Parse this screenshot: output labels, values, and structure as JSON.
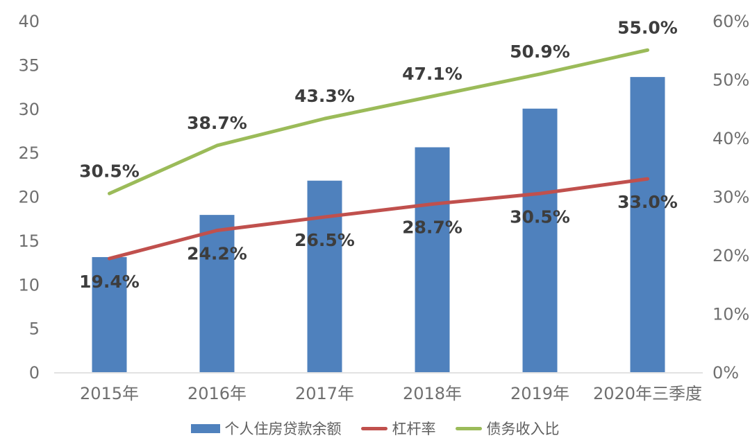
{
  "background": "#ffffff",
  "colors": {
    "bar": "#4f81bd",
    "leverage_line": "#c0504d",
    "dti_line": "#9bbb59",
    "axis_line": "#d9d9d9",
    "tick_label": "#6f6f6f",
    "data_label": "#3d3d3d",
    "legend_label": "#5f5f5f"
  },
  "chart_data": {
    "type": "combo",
    "title": "",
    "grid": false,
    "legend_position": "bottom",
    "categories": [
      "2015年",
      "2016年",
      "2017年",
      "2018年",
      "2019年",
      "2020年三季度"
    ],
    "series": [
      {
        "key": "housing-loan-balance",
        "name": "个人住房贷款余额",
        "type": "bar",
        "axis": "left",
        "color": "#4f81bd",
        "values": [
          13.1,
          17.9,
          21.8,
          25.6,
          30.0,
          33.6
        ]
      },
      {
        "key": "leverage-ratio",
        "name": "杠杆率",
        "type": "line",
        "axis": "right",
        "color": "#c0504d",
        "values": [
          19.4,
          24.2,
          26.5,
          28.7,
          30.5,
          33.0
        ],
        "point_labels": [
          "19.4%",
          "24.2%",
          "26.5%",
          "28.7%",
          "30.5%",
          "33.0%"
        ],
        "label_position": "below"
      },
      {
        "key": "debt-to-income",
        "name": "债务收入比",
        "type": "line",
        "axis": "right",
        "color": "#9bbb59",
        "values": [
          30.5,
          38.7,
          43.3,
          47.1,
          50.9,
          55.0
        ],
        "point_labels": [
          "30.5%",
          "38.7%",
          "43.3%",
          "47.1%",
          "50.9%",
          "55.0%"
        ],
        "label_position": "above"
      }
    ],
    "left_axis": {
      "min": 0,
      "max": 40,
      "tick_values": [
        0,
        5,
        10,
        15,
        20,
        25,
        30,
        35,
        40
      ],
      "tick_labels": [
        "0",
        "5",
        "10",
        "15",
        "20",
        "25",
        "30",
        "35",
        "40"
      ]
    },
    "right_axis": {
      "min": 0,
      "max": 60,
      "tick_values": [
        0,
        10,
        20,
        30,
        40,
        50,
        60
      ],
      "tick_labels": [
        "0%",
        "10%",
        "20%",
        "30%",
        "40%",
        "50%",
        "60%"
      ]
    },
    "legend": [
      {
        "key": "housing-loan-balance",
        "label": "个人住房贷款余额",
        "swatch": "rect",
        "color": "#4f81bd"
      },
      {
        "key": "leverage-ratio",
        "label": "杠杆率",
        "swatch": "line",
        "color": "#c0504d"
      },
      {
        "key": "debt-to-income",
        "label": "债务收入比",
        "swatch": "line",
        "color": "#9bbb59"
      }
    ]
  }
}
